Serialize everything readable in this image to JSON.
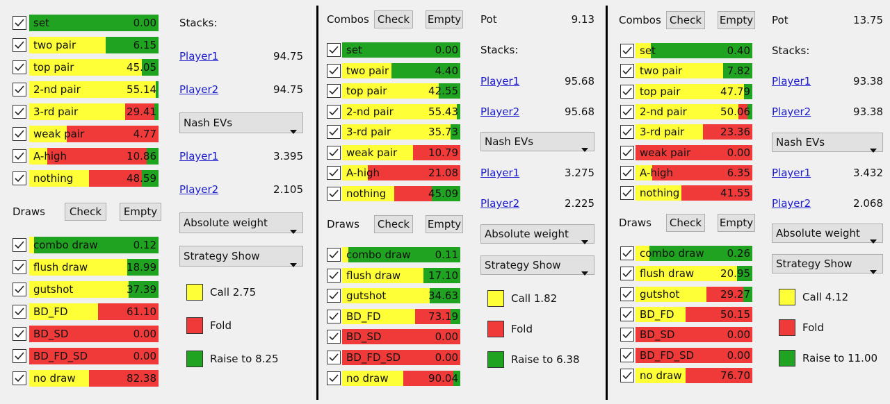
{
  "colors": [
    "#ffff38",
    "#f03a3a",
    "#20a320"
  ],
  "panels": [
    {
      "stacks_label": "Stacks:",
      "stacks": [
        {
          "name": "Player1",
          "value": "94.75"
        },
        {
          "name": "Player2",
          "value": "94.75"
        }
      ],
      "ev_mode": "Nash EVs",
      "evs": [
        {
          "name": "Player1",
          "value": "3.395"
        },
        {
          "name": "Player2",
          "value": "2.105"
        }
      ],
      "weight_mode": "Absolute weight",
      "show_mode": "Strategy Show",
      "legend": [
        "Call 2.75",
        "Fold",
        "Raise to 8.25"
      ],
      "combos": [
        {
          "label": "set",
          "value": "0.00",
          "mix": [
            0,
            0,
            100
          ]
        },
        {
          "label": "two pair",
          "value": "6.15",
          "mix": [
            59,
            0,
            41
          ]
        },
        {
          "label": "top pair",
          "value": "45.05",
          "mix": [
            87,
            0,
            13
          ]
        },
        {
          "label": "2-nd pair",
          "value": "55.14",
          "mix": [
            98,
            0,
            2
          ]
        },
        {
          "label": "3-rd pair",
          "value": "29.41",
          "mix": [
            74,
            23,
            3
          ]
        },
        {
          "label": "weak pair",
          "value": "4.77",
          "mix": [
            29,
            71,
            0
          ]
        },
        {
          "label": "A-high",
          "value": "10.86",
          "mix": [
            14,
            77,
            9
          ]
        },
        {
          "label": "nothing",
          "value": "48.59",
          "mix": [
            46,
            41,
            13
          ]
        }
      ],
      "draws_header": {
        "label": "Draws",
        "check": "Check",
        "empty": "Empty"
      },
      "draws": [
        {
          "label": "combo draw",
          "value": "0.12",
          "mix": [
            4,
            0,
            96
          ]
        },
        {
          "label": "flush draw",
          "value": "18.99",
          "mix": [
            76,
            0,
            24
          ]
        },
        {
          "label": "gutshot",
          "value": "37.39",
          "mix": [
            77,
            0,
            23
          ]
        },
        {
          "label": "BD_FD",
          "value": "61.10",
          "mix": [
            53,
            47,
            0
          ]
        },
        {
          "label": "BD_SD",
          "value": "0.00",
          "mix": [
            0,
            100,
            0
          ]
        },
        {
          "label": "BD_FD_SD",
          "value": "0.00",
          "mix": [
            0,
            100,
            0
          ]
        },
        {
          "label": "no draw",
          "value": "82.38",
          "mix": [
            46,
            54,
            0
          ]
        }
      ]
    },
    {
      "combos_header": {
        "label": "Combos",
        "check": "Check",
        "empty": "Empty"
      },
      "pot": {
        "label": "Pot",
        "value": "9.13"
      },
      "stacks_label": "Stacks:",
      "stacks": [
        {
          "name": "Player1",
          "value": "95.68"
        },
        {
          "name": "Player2",
          "value": "95.68"
        }
      ],
      "ev_mode": "Nash EVs",
      "evs": [
        {
          "name": "Player1",
          "value": "3.275"
        },
        {
          "name": "Player2",
          "value": "2.225"
        }
      ],
      "weight_mode": "Absolute weight",
      "show_mode": "Strategy Show",
      "legend": [
        "Call 1.82",
        "Fold",
        "Raise to 6.38"
      ],
      "combos": [
        {
          "label": "set",
          "value": "0.00",
          "mix": [
            0,
            0,
            100
          ]
        },
        {
          "label": "two pair",
          "value": "4.40",
          "mix": [
            42,
            0,
            58
          ]
        },
        {
          "label": "top pair",
          "value": "42.55",
          "mix": [
            82,
            0,
            18
          ]
        },
        {
          "label": "2-nd pair",
          "value": "55.43",
          "mix": [
            97,
            0,
            3
          ]
        },
        {
          "label": "3-rd pair",
          "value": "35.73",
          "mix": [
            92,
            0,
            8
          ]
        },
        {
          "label": "weak pair",
          "value": "10.79",
          "mix": [
            60,
            40,
            0
          ]
        },
        {
          "label": "A-high",
          "value": "21.08",
          "mix": [
            22,
            78,
            0
          ]
        },
        {
          "label": "nothing",
          "value": "45.09",
          "mix": [
            44,
            32,
            24
          ]
        }
      ],
      "draws_header": {
        "label": "Draws",
        "check": "Check",
        "empty": "Empty"
      },
      "draws": [
        {
          "label": "combo draw",
          "value": "0.11",
          "mix": [
            5,
            0,
            95
          ]
        },
        {
          "label": "flush draw",
          "value": "17.10",
          "mix": [
            69,
            0,
            31
          ]
        },
        {
          "label": "gutshot",
          "value": "34.63",
          "mix": [
            74,
            0,
            26
          ]
        },
        {
          "label": "BD_FD",
          "value": "73.19",
          "mix": [
            62,
            30,
            8
          ]
        },
        {
          "label": "BD_SD",
          "value": "0.00",
          "mix": [
            0,
            100,
            0
          ]
        },
        {
          "label": "BD_FD_SD",
          "value": "0.00",
          "mix": [
            0,
            100,
            0
          ]
        },
        {
          "label": "no draw",
          "value": "90.04",
          "mix": [
            52,
            42,
            6
          ]
        }
      ]
    },
    {
      "combos_header": {
        "label": "Combos",
        "check": "Check",
        "empty": "Empty"
      },
      "pot": {
        "label": "Pot",
        "value": "13.75"
      },
      "stacks_label": "Stacks:",
      "stacks": [
        {
          "name": "Player1",
          "value": "93.38"
        },
        {
          "name": "Player2",
          "value": "93.38"
        }
      ],
      "ev_mode": "Nash EVs",
      "evs": [
        {
          "name": "Player1",
          "value": "3.432"
        },
        {
          "name": "Player2",
          "value": "2.068"
        }
      ],
      "weight_mode": "Absolute weight",
      "show_mode": "Strategy Show",
      "legend": [
        "Call 4.12",
        "Fold",
        "Raise to 11.00"
      ],
      "combos": [
        {
          "label": "set",
          "value": "0.40",
          "mix": [
            13,
            0,
            87
          ]
        },
        {
          "label": "two pair",
          "value": "7.82",
          "mix": [
            75,
            0,
            25
          ]
        },
        {
          "label": "top pair",
          "value": "47.79",
          "mix": [
            93,
            0,
            7
          ]
        },
        {
          "label": "2-nd pair",
          "value": "50.06",
          "mix": [
            88,
            8,
            4
          ]
        },
        {
          "label": "3-rd pair",
          "value": "23.36",
          "mix": [
            58,
            42,
            0
          ]
        },
        {
          "label": "weak pair",
          "value": "0.00",
          "mix": [
            0,
            100,
            0
          ]
        },
        {
          "label": "A-high",
          "value": "6.35",
          "mix": [
            14,
            86,
            0
          ]
        },
        {
          "label": "nothing",
          "value": "41.55",
          "mix": [
            39,
            61,
            0
          ]
        }
      ],
      "draws_header": {
        "label": "Draws",
        "check": "Check",
        "empty": "Empty"
      },
      "draws": [
        {
          "label": "combo draw",
          "value": "0.26",
          "mix": [
            12,
            0,
            88
          ]
        },
        {
          "label": "flush draw",
          "value": "20.95",
          "mix": [
            87,
            0,
            13
          ]
        },
        {
          "label": "gutshot",
          "value": "29.27",
          "mix": [
            61,
            31,
            8
          ]
        },
        {
          "label": "BD_FD",
          "value": "50.15",
          "mix": [
            43,
            57,
            0
          ]
        },
        {
          "label": "BD_SD",
          "value": "0.00",
          "mix": [
            0,
            100,
            0
          ]
        },
        {
          "label": "BD_FD_SD",
          "value": "0.00",
          "mix": [
            0,
            100,
            0
          ]
        },
        {
          "label": "no draw",
          "value": "76.70",
          "mix": [
            43,
            57,
            0
          ]
        }
      ]
    }
  ]
}
